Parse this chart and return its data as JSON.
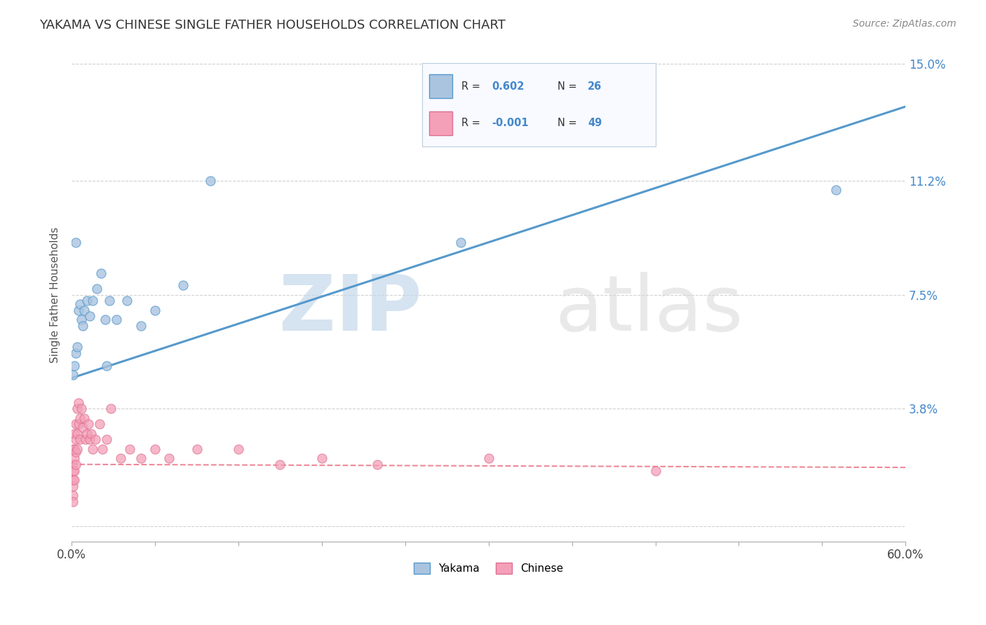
{
  "title": "YAKAMA VS CHINESE SINGLE FATHER HOUSEHOLDS CORRELATION CHART",
  "source": "Source: ZipAtlas.com",
  "xlabel": "",
  "ylabel": "Single Father Households",
  "xlim": [
    0.0,
    0.6
  ],
  "ylim": [
    -0.005,
    0.155
  ],
  "xticks": [
    0.0,
    0.06,
    0.12,
    0.18,
    0.24,
    0.3,
    0.36,
    0.42,
    0.48,
    0.54,
    0.6
  ],
  "ytick_positions": [
    0.0,
    0.038,
    0.075,
    0.112,
    0.15
  ],
  "ytick_labels": [
    "",
    "3.8%",
    "7.5%",
    "11.2%",
    "15.0%"
  ],
  "yakama_color": "#aac4e0",
  "chinese_color": "#f4a0b8",
  "trendline_yakama_color": "#5599cc",
  "trendline_chinese_color": "#ee8899",
  "watermark_zip": "ZIP",
  "watermark_atlas": "atlas",
  "background_color": "#ffffff",
  "trendline_yakama_x0": 0.0,
  "trendline_yakama_y0": 0.048,
  "trendline_yakama_x1": 0.6,
  "trendline_yakama_y1": 0.136,
  "trendline_chinese_x0": 0.0,
  "trendline_chinese_x1": 0.6,
  "trendline_chinese_y0": 0.02,
  "trendline_chinese_y1": 0.019,
  "yakama_x": [
    0.001,
    0.002,
    0.003,
    0.004,
    0.005,
    0.006,
    0.007,
    0.008,
    0.009,
    0.011,
    0.013,
    0.015,
    0.018,
    0.021,
    0.024,
    0.027,
    0.032,
    0.04,
    0.05,
    0.06,
    0.08,
    0.1,
    0.28,
    0.55,
    0.003,
    0.025
  ],
  "yakama_y": [
    0.049,
    0.052,
    0.056,
    0.058,
    0.07,
    0.072,
    0.067,
    0.065,
    0.07,
    0.073,
    0.068,
    0.073,
    0.077,
    0.082,
    0.067,
    0.073,
    0.067,
    0.073,
    0.065,
    0.07,
    0.078,
    0.112,
    0.092,
    0.109,
    0.092,
    0.052
  ],
  "chinese_x": [
    0.001,
    0.001,
    0.001,
    0.001,
    0.001,
    0.001,
    0.001,
    0.002,
    0.002,
    0.002,
    0.002,
    0.002,
    0.003,
    0.003,
    0.003,
    0.003,
    0.004,
    0.004,
    0.004,
    0.005,
    0.005,
    0.006,
    0.006,
    0.007,
    0.008,
    0.009,
    0.01,
    0.011,
    0.012,
    0.013,
    0.014,
    0.015,
    0.017,
    0.02,
    0.022,
    0.025,
    0.028,
    0.035,
    0.042,
    0.05,
    0.06,
    0.07,
    0.09,
    0.12,
    0.15,
    0.18,
    0.22,
    0.3,
    0.42
  ],
  "chinese_y": [
    0.025,
    0.02,
    0.018,
    0.015,
    0.013,
    0.01,
    0.008,
    0.03,
    0.025,
    0.022,
    0.018,
    0.015,
    0.033,
    0.028,
    0.024,
    0.02,
    0.038,
    0.03,
    0.025,
    0.04,
    0.033,
    0.035,
    0.028,
    0.038,
    0.032,
    0.035,
    0.028,
    0.03,
    0.033,
    0.028,
    0.03,
    0.025,
    0.028,
    0.033,
    0.025,
    0.028,
    0.038,
    0.022,
    0.025,
    0.022,
    0.025,
    0.022,
    0.025,
    0.025,
    0.02,
    0.022,
    0.02,
    0.022,
    0.018
  ]
}
